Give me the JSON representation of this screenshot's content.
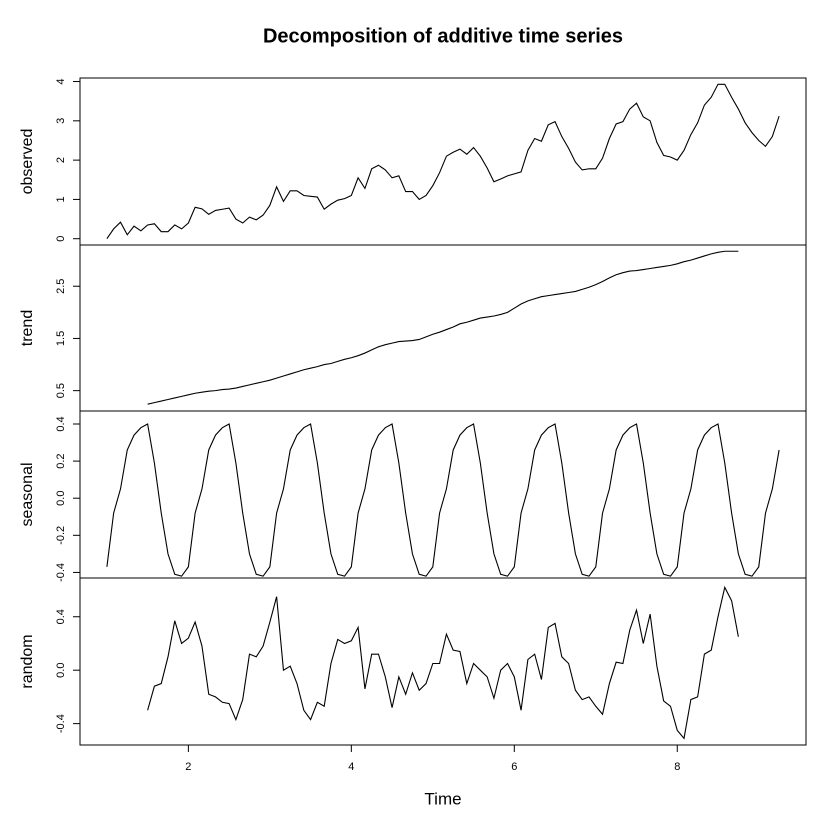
{
  "chart_data": [
    {
      "type": "line",
      "title": "Decomposition of additive time series",
      "ylabel": "observed",
      "color": "#000000",
      "x": [
        1,
        1.083,
        1.167,
        1.25,
        1.333,
        1.417,
        1.5,
        1.583,
        1.667,
        1.75,
        1.833,
        1.917,
        2,
        2.083,
        2.167,
        2.25,
        2.333,
        2.417,
        2.5,
        2.583,
        2.667,
        2.75,
        2.833,
        2.917,
        3,
        3.083,
        3.167,
        3.25,
        3.333,
        3.417,
        3.5,
        3.583,
        3.667,
        3.75,
        3.833,
        3.917,
        4,
        4.083,
        4.167,
        4.25,
        4.333,
        4.417,
        4.5,
        4.583,
        4.667,
        4.75,
        4.833,
        4.917,
        5,
        5.083,
        5.167,
        5.25,
        5.333,
        5.417,
        5.5,
        5.583,
        5.667,
        5.75,
        5.833,
        5.917,
        6,
        6.083,
        6.167,
        6.25,
        6.333,
        6.417,
        6.5,
        6.583,
        6.667,
        6.75,
        6.833,
        6.917,
        7,
        7.083,
        7.167,
        7.25,
        7.333,
        7.417,
        7.5,
        7.583,
        7.667,
        7.75,
        7.833,
        7.917,
        8,
        8.083,
        8.167,
        8.25,
        8.333,
        8.417,
        8.5,
        8.583,
        8.667,
        8.75,
        8.833,
        8.917,
        9,
        9.083,
        9.167,
        9.25
      ],
      "values": [
        0.0,
        0.25,
        0.42,
        0.1,
        0.32,
        0.2,
        0.35,
        0.38,
        0.18,
        0.18,
        0.35,
        0.25,
        0.4,
        0.8,
        0.76,
        0.62,
        0.72,
        0.75,
        0.78,
        0.5,
        0.4,
        0.55,
        0.48,
        0.6,
        0.85,
        1.32,
        0.95,
        1.22,
        1.22,
        1.1,
        1.08,
        1.06,
        0.75,
        0.88,
        0.98,
        1.02,
        1.1,
        1.55,
        1.28,
        1.78,
        1.87,
        1.75,
        1.55,
        1.6,
        1.2,
        1.2,
        1.0,
        1.1,
        1.35,
        1.68,
        2.1,
        2.2,
        2.28,
        2.15,
        2.32,
        2.1,
        1.8,
        1.45,
        1.52,
        1.6,
        1.65,
        1.7,
        2.25,
        2.55,
        2.48,
        2.9,
        2.98,
        2.6,
        2.3,
        1.95,
        1.75,
        1.78,
        1.78,
        2.05,
        2.55,
        2.92,
        2.98,
        3.3,
        3.45,
        3.1,
        3.0,
        2.45,
        2.12,
        2.08,
        2.0,
        2.25,
        2.65,
        2.95,
        3.4,
        3.6,
        3.93,
        3.93,
        3.6,
        3.3,
        2.95,
        2.7,
        2.5,
        2.35,
        2.6,
        3.12
      ],
      "ylim": [
        -0.16,
        4.09
      ],
      "yticks": [
        0,
        1,
        2,
        3,
        4
      ]
    },
    {
      "type": "line",
      "ylabel": "trend",
      "color": "#000000",
      "x": [
        1.5,
        1.583,
        1.667,
        1.75,
        1.833,
        1.917,
        2,
        2.083,
        2.167,
        2.25,
        2.333,
        2.417,
        2.5,
        2.583,
        2.667,
        2.75,
        2.833,
        2.917,
        3,
        3.083,
        3.167,
        3.25,
        3.333,
        3.417,
        3.5,
        3.583,
        3.667,
        3.75,
        3.833,
        3.917,
        4,
        4.083,
        4.167,
        4.25,
        4.333,
        4.417,
        4.5,
        4.583,
        4.667,
        4.75,
        4.833,
        4.917,
        5,
        5.083,
        5.167,
        5.25,
        5.333,
        5.417,
        5.5,
        5.583,
        5.667,
        5.75,
        5.833,
        5.917,
        6,
        6.083,
        6.167,
        6.25,
        6.333,
        6.417,
        6.5,
        6.583,
        6.667,
        6.75,
        6.833,
        6.917,
        7,
        7.083,
        7.167,
        7.25,
        7.333,
        7.417,
        7.5,
        7.583,
        7.667,
        7.75,
        7.833,
        7.917,
        8,
        8.083,
        8.167,
        8.25,
        8.333,
        8.417,
        8.5,
        8.583,
        8.667,
        8.75
      ],
      "values": [
        0.24,
        0.27,
        0.3,
        0.33,
        0.36,
        0.39,
        0.42,
        0.45,
        0.47,
        0.49,
        0.5,
        0.52,
        0.53,
        0.55,
        0.58,
        0.61,
        0.64,
        0.67,
        0.7,
        0.74,
        0.78,
        0.82,
        0.86,
        0.9,
        0.93,
        0.96,
        1.0,
        1.02,
        1.06,
        1.1,
        1.13,
        1.17,
        1.22,
        1.28,
        1.34,
        1.38,
        1.41,
        1.44,
        1.45,
        1.46,
        1.48,
        1.53,
        1.58,
        1.62,
        1.67,
        1.72,
        1.78,
        1.81,
        1.85,
        1.89,
        1.91,
        1.93,
        1.96,
        2.0,
        2.08,
        2.16,
        2.22,
        2.26,
        2.3,
        2.32,
        2.34,
        2.36,
        2.38,
        2.4,
        2.44,
        2.48,
        2.53,
        2.59,
        2.66,
        2.72,
        2.76,
        2.79,
        2.8,
        2.82,
        2.84,
        2.86,
        2.88,
        2.9,
        2.93,
        2.97,
        3.0,
        3.04,
        3.08,
        3.12,
        3.15,
        3.17,
        3.17,
        3.17
      ],
      "ylim": [
        0.11,
        3.29
      ],
      "yticks": [
        0.5,
        1.5,
        2.5
      ]
    },
    {
      "type": "line",
      "ylabel": "seasonal",
      "color": "#000000",
      "x": [
        1,
        1.083,
        1.167,
        1.25,
        1.333,
        1.417,
        1.5,
        1.583,
        1.667,
        1.75,
        1.833,
        1.917,
        2,
        2.083,
        2.167,
        2.25,
        2.333,
        2.417,
        2.5,
        2.583,
        2.667,
        2.75,
        2.833,
        2.917,
        3,
        3.083,
        3.167,
        3.25,
        3.333,
        3.417,
        3.5,
        3.583,
        3.667,
        3.75,
        3.833,
        3.917,
        4,
        4.083,
        4.167,
        4.25,
        4.333,
        4.417,
        4.5,
        4.583,
        4.667,
        4.75,
        4.833,
        4.917,
        5,
        5.083,
        5.167,
        5.25,
        5.333,
        5.417,
        5.5,
        5.583,
        5.667,
        5.75,
        5.833,
        5.917,
        6,
        6.083,
        6.167,
        6.25,
        6.333,
        6.417,
        6.5,
        6.583,
        6.667,
        6.75,
        6.833,
        6.917,
        7,
        7.083,
        7.167,
        7.25,
        7.333,
        7.417,
        7.5,
        7.583,
        7.667,
        7.75,
        7.833,
        7.917,
        8,
        8.083,
        8.167,
        8.25,
        8.333,
        8.417,
        8.5,
        8.583,
        8.667,
        8.75,
        8.833,
        8.917,
        9,
        9.083,
        9.167,
        9.25
      ],
      "values": [
        -0.37,
        -0.08,
        0.05,
        0.26,
        0.34,
        0.38,
        0.4,
        0.19,
        -0.08,
        -0.3,
        -0.41,
        -0.42,
        -0.37,
        -0.08,
        0.05,
        0.26,
        0.34,
        0.38,
        0.4,
        0.19,
        -0.08,
        -0.3,
        -0.41,
        -0.42,
        -0.37,
        -0.08,
        0.05,
        0.26,
        0.34,
        0.38,
        0.4,
        0.19,
        -0.08,
        -0.3,
        -0.41,
        -0.42,
        -0.37,
        -0.08,
        0.05,
        0.26,
        0.34,
        0.38,
        0.4,
        0.19,
        -0.08,
        -0.3,
        -0.41,
        -0.42,
        -0.37,
        -0.08,
        0.05,
        0.26,
        0.34,
        0.38,
        0.4,
        0.19,
        -0.08,
        -0.3,
        -0.41,
        -0.42,
        -0.37,
        -0.08,
        0.05,
        0.26,
        0.34,
        0.38,
        0.4,
        0.19,
        -0.08,
        -0.3,
        -0.41,
        -0.42,
        -0.37,
        -0.08,
        0.05,
        0.26,
        0.34,
        0.38,
        0.4,
        0.19,
        -0.08,
        -0.3,
        -0.41,
        -0.42,
        -0.37,
        -0.08,
        0.05,
        0.26,
        0.34,
        0.38,
        0.4,
        0.19,
        -0.08,
        -0.3,
        -0.41,
        -0.42,
        -0.37,
        -0.08,
        0.05,
        0.26
      ],
      "ylim": [
        -0.43,
        0.47
      ],
      "yticks": [
        -0.4,
        -0.2,
        {
          "value": 0,
          "label": "0.0"
        },
        0.2,
        0.4
      ]
    },
    {
      "type": "line",
      "ylabel": "random",
      "xlabel": "Time",
      "color": "#000000",
      "x": [
        1.5,
        1.583,
        1.667,
        1.75,
        1.833,
        1.917,
        2,
        2.083,
        2.167,
        2.25,
        2.333,
        2.417,
        2.5,
        2.583,
        2.667,
        2.75,
        2.833,
        2.917,
        3,
        3.083,
        3.167,
        3.25,
        3.333,
        3.417,
        3.5,
        3.583,
        3.667,
        3.75,
        3.833,
        3.917,
        4,
        4.083,
        4.167,
        4.25,
        4.333,
        4.417,
        4.5,
        4.583,
        4.667,
        4.75,
        4.833,
        4.917,
        5,
        5.083,
        5.167,
        5.25,
        5.333,
        5.417,
        5.5,
        5.583,
        5.667,
        5.75,
        5.833,
        5.917,
        6,
        6.083,
        6.167,
        6.25,
        6.333,
        6.417,
        6.5,
        6.583,
        6.667,
        6.75,
        6.833,
        6.917,
        7,
        7.083,
        7.167,
        7.25,
        7.333,
        7.417,
        7.5,
        7.583,
        7.667,
        7.75,
        7.833,
        7.917,
        8,
        8.083,
        8.167,
        8.25,
        8.333,
        8.417,
        8.5,
        8.583,
        8.667,
        8.75
      ],
      "values": [
        -0.3,
        -0.12,
        -0.1,
        0.1,
        0.37,
        0.2,
        0.24,
        0.36,
        0.18,
        -0.18,
        -0.2,
        -0.24,
        -0.25,
        -0.37,
        -0.22,
        0.12,
        0.1,
        0.18,
        0.36,
        0.55,
        0.0,
        0.03,
        -0.1,
        -0.3,
        -0.37,
        -0.24,
        -0.27,
        0.05,
        0.23,
        0.2,
        0.22,
        0.32,
        -0.14,
        0.12,
        0.12,
        -0.05,
        -0.28,
        -0.05,
        -0.18,
        -0.02,
        -0.15,
        -0.1,
        0.05,
        0.05,
        0.27,
        0.15,
        0.14,
        -0.1,
        0.05,
        0.0,
        -0.05,
        -0.21,
        0.0,
        0.05,
        -0.05,
        -0.3,
        0.08,
        0.12,
        -0.07,
        0.32,
        0.35,
        0.1,
        0.05,
        -0.15,
        -0.22,
        -0.2,
        -0.27,
        -0.33,
        -0.1,
        0.06,
        0.05,
        0.3,
        0.45,
        0.2,
        0.42,
        0.03,
        -0.23,
        -0.27,
        -0.45,
        -0.51,
        -0.22,
        -0.2,
        0.12,
        0.15,
        0.4,
        0.62,
        0.52,
        0.25
      ],
      "ylim": [
        -0.56,
        0.69
      ],
      "yticks": [
        -0.4,
        {
          "value": 0,
          "label": "0.0"
        },
        0.4
      ],
      "xlim": [
        0.67,
        9.58
      ],
      "xticks": [
        2,
        4,
        6,
        8
      ]
    }
  ]
}
